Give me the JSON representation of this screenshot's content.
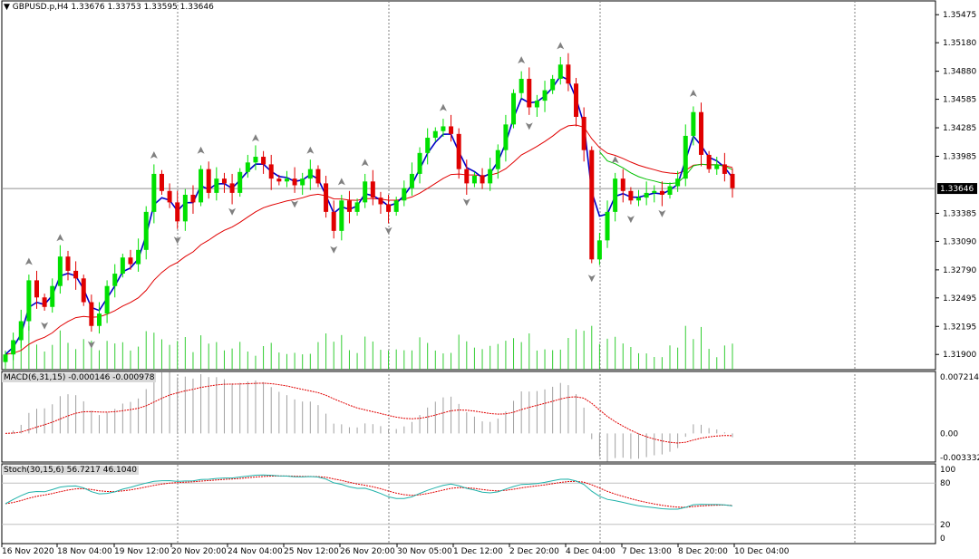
{
  "header": {
    "symbol": "GBPUSD.p,H4",
    "ohlc": "1.33676 1.33753 1.33595 1.33646"
  },
  "indicators": {
    "macd_label": "MACD(6,31,15) -0.000146 -0.000978",
    "stoch_label": "Stoch(30,15,6) 56.7217 46.1040"
  },
  "colors": {
    "bull": "#00e000",
    "bear": "#e00000",
    "ma_fast": "#0000c8",
    "ma_slow": "#e00000",
    "ma_mid": "#00c000",
    "volume": "#32cd32",
    "grid": "#808080",
    "stoch_main": "#20b2aa",
    "stoch_signal": "#e00000"
  },
  "chart_data": [
    {
      "type": "candlestick",
      "title": "GBPUSD.p,H4",
      "ylim": [
        1.3174,
        1.3562
      ],
      "y_ticks": [
        "1.35475",
        "1.35180",
        "1.34880",
        "1.34585",
        "1.34285",
        "1.33985",
        "1.33385",
        "1.33090",
        "1.32790",
        "1.32495",
        "1.32195",
        "1.31900"
      ],
      "current_price": "1.33646",
      "x_labels": [
        "16 Nov 2020",
        "18 Nov 04:00",
        "19 Nov 12:00",
        "20 Nov 20:00",
        "24 Nov 04:00",
        "25 Nov 12:00",
        "26 Nov 20:00",
        "30 Nov 05:00",
        "1 Dec 12:00",
        "2 Dec 20:00",
        "4 Dec 04:00",
        "7 Dec 13:00",
        "8 Dec 20:00",
        "10 Dec 04:00"
      ],
      "close": [
        1.319,
        1.3205,
        1.3225,
        1.3268,
        1.325,
        1.324,
        1.3262,
        1.3293,
        1.3278,
        1.327,
        1.3245,
        1.322,
        1.3233,
        1.3262,
        1.3275,
        1.3292,
        1.3285,
        1.33,
        1.334,
        1.338,
        1.3362,
        1.335,
        1.333,
        1.3358,
        1.335,
        1.3385,
        1.336,
        1.3375,
        1.337,
        1.336,
        1.3382,
        1.3392,
        1.3398,
        1.339,
        1.3375,
        1.3372,
        1.3375,
        1.3368,
        1.3375,
        1.3385,
        1.337,
        1.334,
        1.332,
        1.3352,
        1.334,
        1.335,
        1.3372,
        1.3355,
        1.3348,
        1.334,
        1.3352,
        1.3365,
        1.338,
        1.3402,
        1.3418,
        1.3425,
        1.343,
        1.3422,
        1.3385,
        1.337,
        1.3378,
        1.337,
        1.3385,
        1.3405,
        1.3432,
        1.3465,
        1.348,
        1.345,
        1.3457,
        1.3468,
        1.348,
        1.3495,
        1.3475,
        1.344,
        1.3405,
        1.329,
        1.331,
        1.334,
        1.3375,
        1.3362,
        1.3352,
        1.3355,
        1.336,
        1.3362,
        1.3358,
        1.3367,
        1.3375,
        1.342,
        1.3445,
        1.34,
        1.3385,
        1.339,
        1.338,
        1.3365
      ],
      "volume_ylim": [
        0,
        60
      ]
    },
    {
      "type": "bar",
      "title": "MACD(6,31,15) -0.000146 -0.000978",
      "ylim": [
        -0.003332,
        0.007214
      ],
      "y_ticks": [
        "0.007214",
        "0.00",
        "-0.003332"
      ]
    },
    {
      "type": "line",
      "title": "Stoch(30,15,6) 56.7217 46.1040",
      "ylim": [
        0,
        100
      ],
      "y_ticks": [
        "100",
        "80",
        "20",
        "0"
      ],
      "levels": [
        80,
        20
      ]
    }
  ]
}
